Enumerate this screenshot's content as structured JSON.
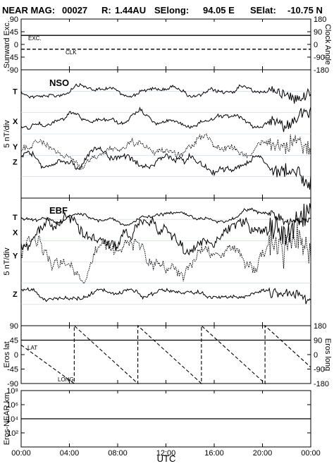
{
  "header": {
    "mission": "NEAR MAG:",
    "file_number": "00027",
    "r_label": "R:",
    "r_value": "1.44AU",
    "selong_label": "SElong:",
    "selong_value": "94.05 E",
    "selat_label": "SElat:",
    "selat_value": "-10.75 N"
  },
  "chart_data": [
    {
      "type": "line",
      "panel": "sunward-excursion-clock-angle",
      "ylabel_left": "Sunward Exc.",
      "ylabel_right": "Clock Angle",
      "ylim_left": [
        -90,
        90
      ],
      "ylim_right": [
        -180,
        180
      ],
      "yticks_left": [
        "90",
        "45",
        "0",
        "-45",
        "-90"
      ],
      "yticks_right": [
        "180",
        "90",
        "0",
        "-90",
        "-180"
      ],
      "series": [
        {
          "name": "EXC.",
          "style": "solid",
          "x": [
            "00:00",
            "24:00"
          ],
          "values": [
            32,
            32
          ]
        },
        {
          "name": "CLK",
          "style": "dashed",
          "x": [
            "00:00",
            "24:00"
          ],
          "values": [
            -17,
            -17
          ]
        }
      ]
    },
    {
      "type": "line",
      "panel": "nso-field",
      "title": "NSO",
      "ylabel": "5 nT/div",
      "trace_labels": [
        "T",
        "X",
        "Y",
        "Z"
      ],
      "series": [
        {
          "name": "T",
          "style": "solid",
          "offset_div": 1.0,
          "amplitude_div": 0.35
        },
        {
          "name": "X",
          "style": "solid",
          "offset_div": 2.4,
          "amplitude_div": 0.4
        },
        {
          "name": "Y",
          "style": "dotted",
          "offset_div": 3.6,
          "amplitude_div": 0.6
        },
        {
          "name": "Z",
          "style": "solid",
          "offset_div": 4.3,
          "amplitude_div": 0.55
        }
      ]
    },
    {
      "type": "line",
      "panel": "ebf-field",
      "title": "EBF",
      "ylabel": "5 nT/div",
      "trace_labels": [
        "T",
        "X",
        "Y",
        "Z"
      ],
      "series": [
        {
          "name": "T",
          "style": "solid",
          "offset_div": 0.9,
          "amplitude_div": 0.3
        },
        {
          "name": "X",
          "style": "solid",
          "offset_div": 1.6,
          "amplitude_div": 1.0
        },
        {
          "name": "Y",
          "style": "dotted",
          "offset_div": 2.7,
          "amplitude_div": 1.1
        },
        {
          "name": "Z",
          "style": "solid",
          "offset_div": 4.5,
          "amplitude_div": 0.35
        }
      ]
    },
    {
      "type": "line",
      "panel": "eros-lat-long",
      "ylabel_left": "Eros lat",
      "ylabel_right": "Eros long",
      "ylim_left": [
        -90,
        90
      ],
      "ylim_right": [
        -180,
        180
      ],
      "yticks_left": [
        "90",
        "45",
        "0",
        "-45",
        "-90"
      ],
      "yticks_right": [
        "180",
        "90",
        "0",
        "-90",
        "-180"
      ],
      "series": [
        {
          "name": "LAT",
          "style": "solid",
          "x": [
            "00:00",
            "24:00"
          ],
          "values": [
            45,
            45
          ]
        },
        {
          "name": "LONG",
          "style": "dashed",
          "axis": "right",
          "period_hours": 5.27,
          "first_wrap_hour": 4.4,
          "start_value": 60
        }
      ]
    },
    {
      "type": "line",
      "panel": "eros-near-distance",
      "ylabel": "Eros-NEAR km",
      "yscale": "log",
      "ylim": [
        1,
        100000000
      ],
      "yticks": [
        "10⁸",
        "10⁶",
        "10⁴",
        "10²"
      ],
      "series": [
        {
          "name": "distance",
          "style": "solid",
          "x": [
            "00:00",
            "24:00"
          ],
          "values": [
            10000,
            10000
          ]
        }
      ]
    }
  ],
  "x_axis": {
    "label": "UTC",
    "ticks": [
      "00:00",
      "04:00",
      "08:00",
      "12:00",
      "16:00",
      "20:00",
      "00:00"
    ]
  }
}
